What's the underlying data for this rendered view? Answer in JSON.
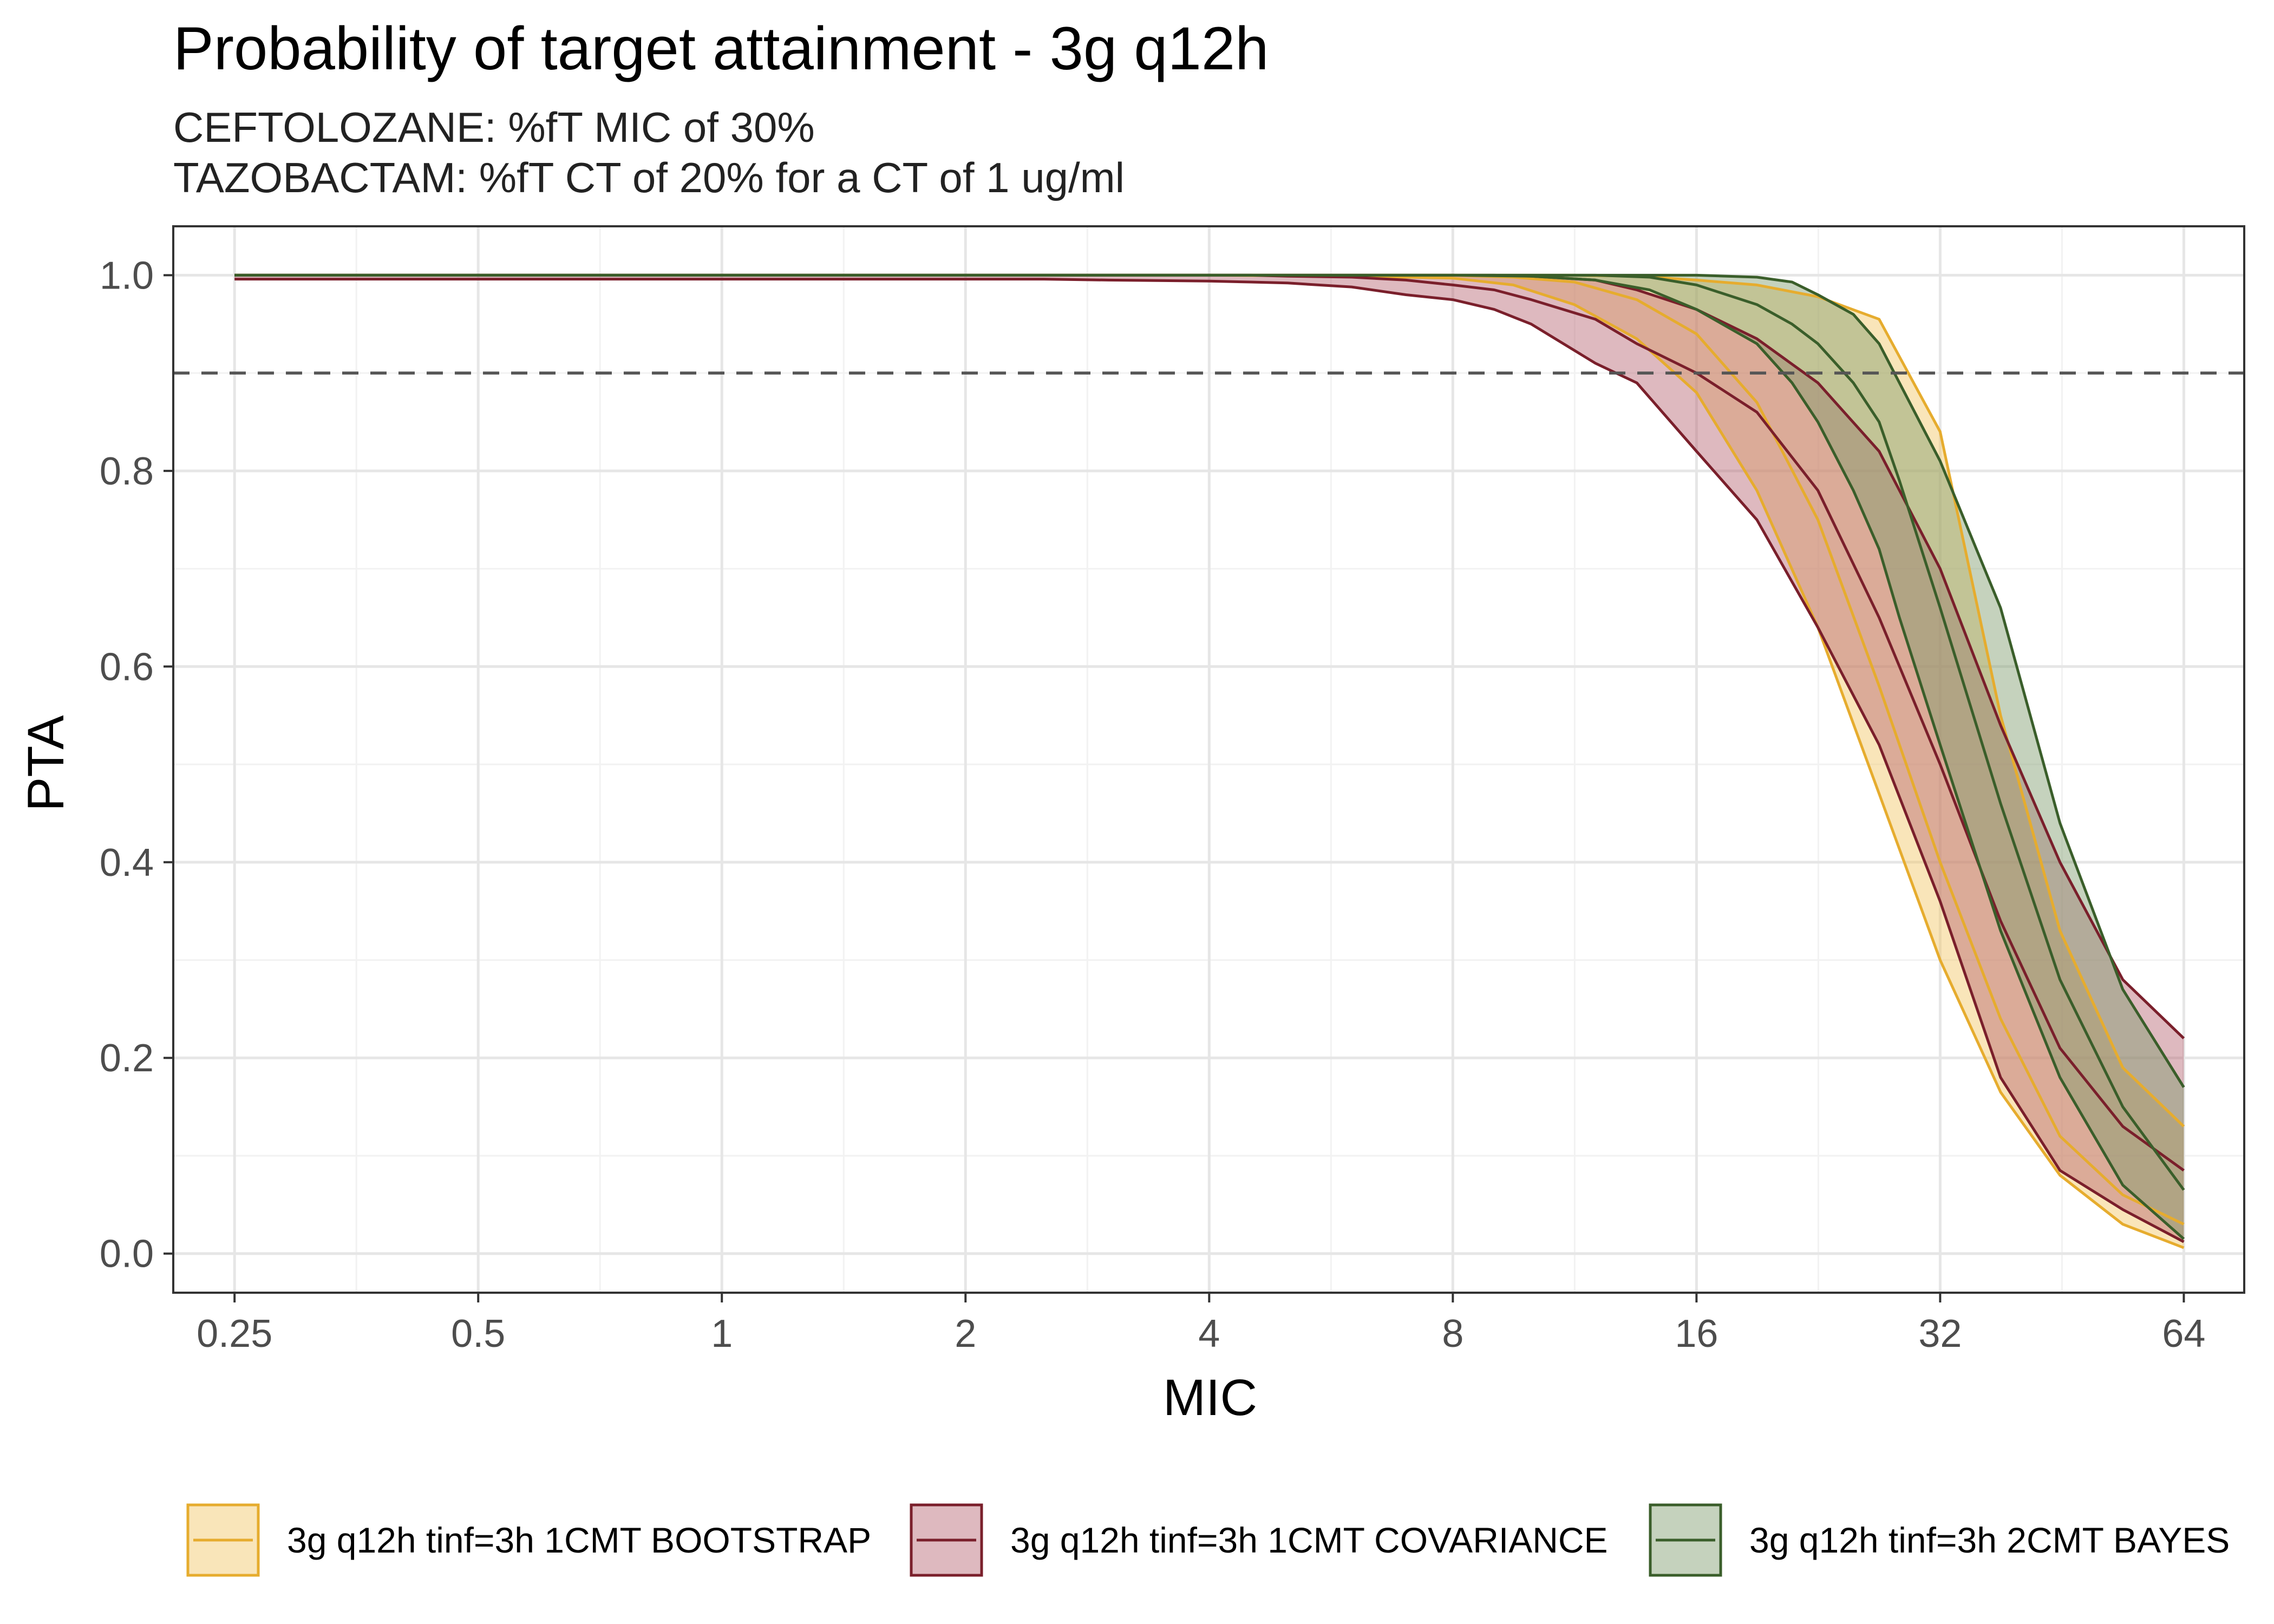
{
  "chart_data": {
    "type": "area",
    "title": "Probability of target attainment - 3g q12h",
    "subtitle_lines": [
      "CEFTOLOZANE: %fT MIC of 30%",
      "TAZOBACTAM: %fT CT of 20% for a CT of 1 ug/ml"
    ],
    "xlabel": "MIC",
    "ylabel": "PTA",
    "x_scale": "log2",
    "xlim": [
      0.21,
      76
    ],
    "ylim": [
      -0.04,
      1.05
    ],
    "x_ticks": [
      0.25,
      0.5,
      1,
      2,
      4,
      8,
      16,
      32,
      64
    ],
    "x_tick_labels": [
      "0.25",
      "0.5",
      "1",
      "2",
      "4",
      "8",
      "16",
      "32",
      "64"
    ],
    "y_ticks": [
      0,
      0.2,
      0.4,
      0.6,
      0.8,
      1.0
    ],
    "y_tick_labels": [
      "0.0",
      "0.2",
      "0.4",
      "0.6",
      "0.8",
      "1.0"
    ],
    "reference_line": {
      "y": 0.9,
      "style": "dashed",
      "color": "#555555"
    },
    "grid": true,
    "legend_position": "bottom",
    "series": [
      {
        "name": "3g q12h tinf=3h 1CMT BOOTSTRAP",
        "line_color": "#e6ac2e",
        "fill_color": "#f2c664",
        "x": [
          0.25,
          1,
          4,
          6,
          8,
          9.5,
          11.3,
          13.5,
          16,
          19,
          22.6,
          26.9,
          32,
          38,
          45,
          53.8,
          64
        ],
        "lower": [
          1.0,
          1.0,
          1.0,
          0.999,
          0.997,
          0.99,
          0.97,
          0.935,
          0.88,
          0.78,
          0.64,
          0.47,
          0.3,
          0.165,
          0.08,
          0.03,
          0.006
        ],
        "median": [
          1.0,
          1.0,
          1.0,
          1.0,
          1.0,
          0.998,
          0.993,
          0.975,
          0.94,
          0.87,
          0.75,
          0.58,
          0.4,
          0.24,
          0.12,
          0.06,
          0.03
        ],
        "upper": [
          1.0,
          1.0,
          1.0,
          1.0,
          1.0,
          1.0,
          1.0,
          0.999,
          0.995,
          0.99,
          0.978,
          0.955,
          0.84,
          0.55,
          0.33,
          0.19,
          0.13
        ]
      },
      {
        "name": "3g q12h tinf=3h 1CMT COVARIANCE",
        "line_color": "#7a1f2b",
        "fill_color": "#b56470",
        "x": [
          0.25,
          1,
          2,
          2.5,
          3,
          4,
          4.5,
          5,
          6,
          7,
          8,
          9,
          10,
          12,
          13.5,
          16,
          19,
          22.6,
          26.9,
          32,
          38,
          45,
          53.8,
          64
        ],
        "lower": [
          0.996,
          0.996,
          0.996,
          0.996,
          0.995,
          0.994,
          0.993,
          0.992,
          0.988,
          0.98,
          0.975,
          0.965,
          0.95,
          0.91,
          0.89,
          0.82,
          0.75,
          0.64,
          0.52,
          0.36,
          0.18,
          0.085,
          0.045,
          0.012
        ],
        "median": [
          1.0,
          1.0,
          1.0,
          1.0,
          1.0,
          1.0,
          1.0,
          0.999,
          0.998,
          0.995,
          0.99,
          0.985,
          0.975,
          0.955,
          0.93,
          0.9,
          0.86,
          0.78,
          0.65,
          0.5,
          0.34,
          0.21,
          0.13,
          0.085
        ],
        "upper": [
          1.0,
          1.0,
          1.0,
          1.0,
          1.0,
          1.0,
          1.0,
          1.0,
          1.0,
          1.0,
          1.0,
          1.0,
          0.999,
          0.995,
          0.985,
          0.965,
          0.935,
          0.89,
          0.82,
          0.7,
          0.54,
          0.4,
          0.28,
          0.22
        ]
      },
      {
        "name": "3g q12h tinf=3h 2CMT BAYES",
        "line_color": "#3a5e2a",
        "fill_color": "#7f9c6c",
        "x": [
          0.25,
          1,
          4,
          8,
          10,
          12,
          14,
          16,
          19,
          21,
          22.6,
          25,
          26.9,
          28.5,
          32,
          38,
          45,
          53.8,
          64
        ],
        "lower": [
          1.0,
          1.0,
          1.0,
          1.0,
          0.999,
          0.995,
          0.985,
          0.965,
          0.93,
          0.89,
          0.85,
          0.78,
          0.72,
          0.65,
          0.52,
          0.33,
          0.18,
          0.07,
          0.015
        ],
        "median": [
          1.0,
          1.0,
          1.0,
          1.0,
          1.0,
          1.0,
          0.998,
          0.99,
          0.97,
          0.95,
          0.93,
          0.89,
          0.85,
          0.79,
          0.66,
          0.46,
          0.28,
          0.15,
          0.065
        ],
        "upper": [
          1.0,
          1.0,
          1.0,
          1.0,
          1.0,
          1.0,
          1.0,
          1.0,
          0.998,
          0.993,
          0.98,
          0.96,
          0.93,
          0.89,
          0.81,
          0.66,
          0.44,
          0.27,
          0.17
        ]
      }
    ]
  }
}
